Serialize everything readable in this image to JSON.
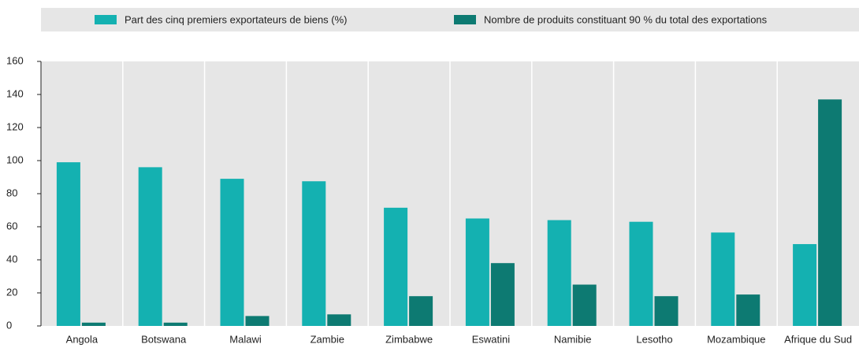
{
  "chart_data": {
    "type": "bar",
    "categories": [
      "Angola",
      "Botswana",
      "Malawi",
      "Zambie",
      "Zimbabwe",
      "Eswatini",
      "Namibie",
      "Lesotho",
      "Mozambique",
      "Afrique du Sud"
    ],
    "series": [
      {
        "name": "Part des cinq premiers exportateurs de biens (%)",
        "color": "#14b1b1",
        "values": [
          99,
          96,
          89,
          87.5,
          71.5,
          65,
          64,
          63,
          56.5,
          49.5
        ]
      },
      {
        "name": "Nombre de produits constituant 90 % du total des exportations",
        "color": "#0d7a72",
        "values": [
          2,
          2,
          6,
          7,
          18,
          38,
          25,
          18,
          19,
          137
        ]
      }
    ],
    "ylim": [
      0,
      160
    ],
    "yticks": [
      0,
      20,
      40,
      60,
      80,
      100,
      120,
      140,
      160
    ],
    "legend": "top"
  }
}
